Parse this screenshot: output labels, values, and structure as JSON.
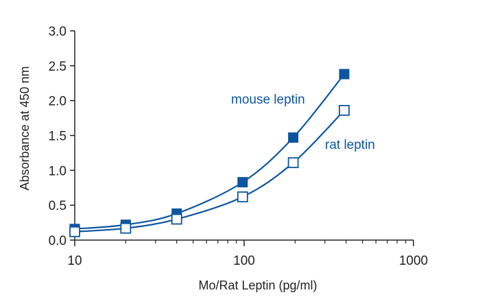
{
  "chart_data": {
    "type": "line",
    "title": "",
    "xlabel": "Mo/Rat Leptin (pg/ml)",
    "ylabel": "Absorbance at 450 nm",
    "x_scale": "log",
    "xlim": [
      10,
      1000
    ],
    "ylim": [
      0,
      3.0
    ],
    "x_ticks": [
      10,
      100,
      1000
    ],
    "x_tick_labels": [
      "10",
      "100",
      "1000"
    ],
    "y_ticks": [
      0,
      0.5,
      1.0,
      1.5,
      2.0,
      2.5,
      3.0
    ],
    "y_tick_labels": [
      "0.0",
      "0.5",
      "1.0",
      "1.5",
      "2.0",
      "2.5",
      "3.0"
    ],
    "grid": false,
    "legend": "inline labels next to curves",
    "series": [
      {
        "name": "mouse leptin",
        "marker": "filled-square",
        "color": "#0d55a0",
        "x": [
          10,
          20,
          40,
          98,
          195,
          390
        ],
        "y": [
          0.16,
          0.22,
          0.38,
          0.83,
          1.47,
          2.38
        ]
      },
      {
        "name": "rat leptin",
        "marker": "open-square",
        "color": "#0d55a0",
        "x": [
          10,
          20,
          40,
          98,
          195,
          390
        ],
        "y": [
          0.12,
          0.17,
          0.3,
          0.62,
          1.11,
          1.86
        ]
      }
    ]
  }
}
